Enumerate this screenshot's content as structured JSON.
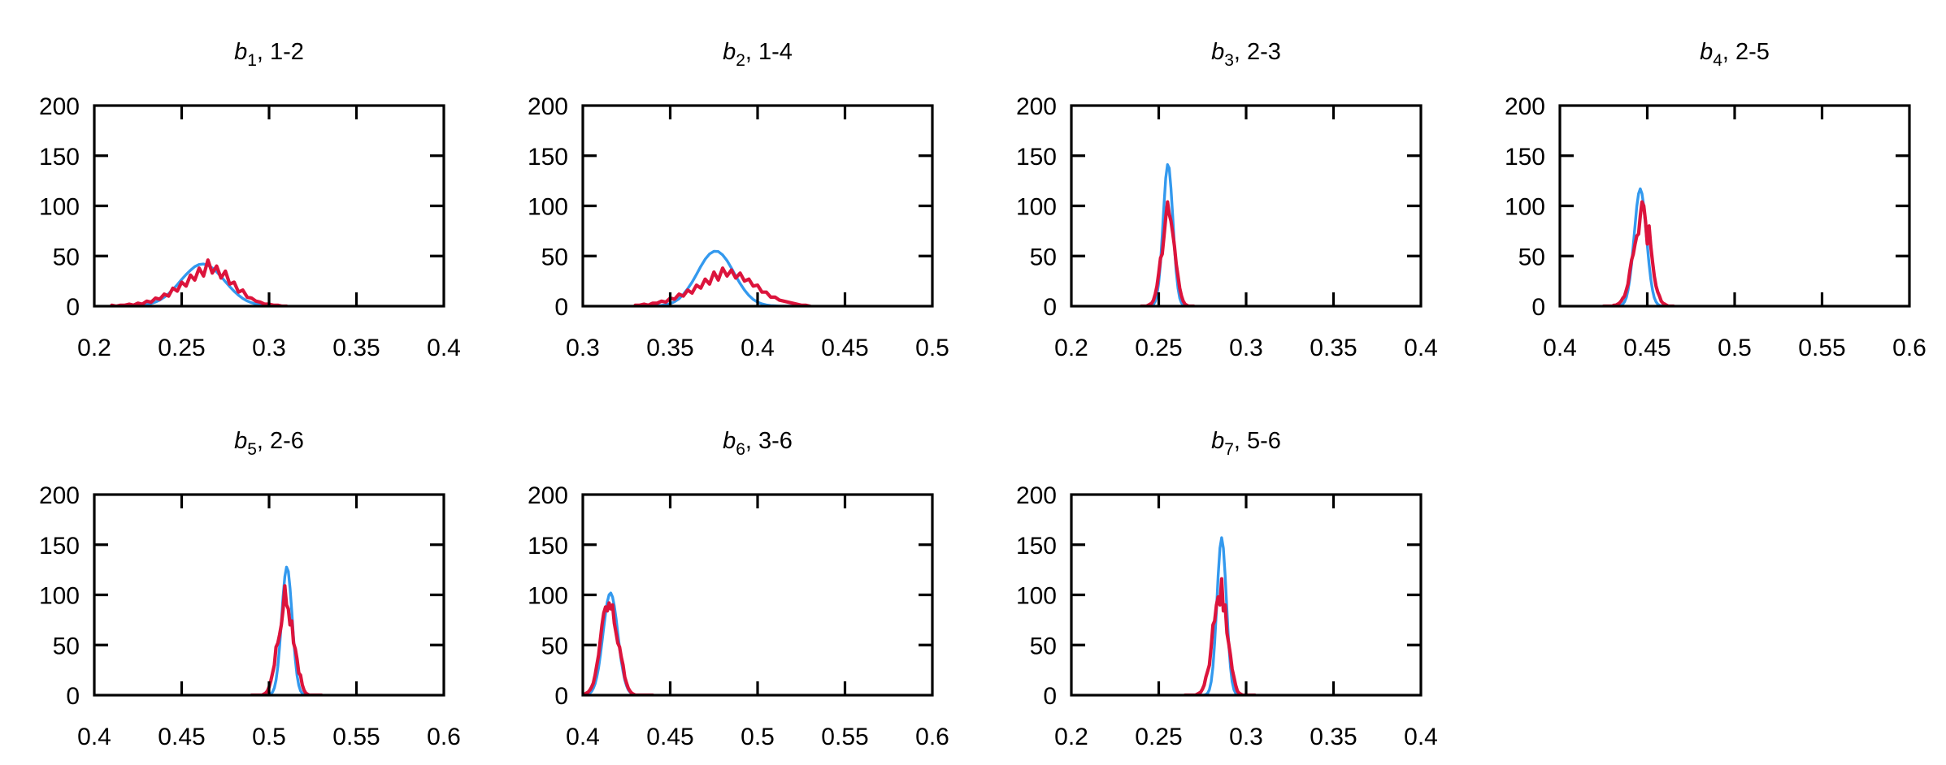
{
  "figure": {
    "colors": {
      "model": "#3399ee",
      "sample": "#dc143c",
      "axes": "#000000"
    }
  },
  "chart_data": [
    {
      "type": "line",
      "title": {
        "var": "b",
        "sub": "1",
        "rest": ", 1-2"
      },
      "xlim": [
        0.2,
        0.4
      ],
      "ylim": [
        0,
        200
      ],
      "xticks": [
        "0.2",
        "0.25",
        "0.3",
        "0.35",
        "0.4"
      ],
      "yticks": [
        "0",
        "50",
        "100",
        "150",
        "200"
      ],
      "xlabel": "",
      "ylabel": "",
      "grid": false,
      "series": [
        {
          "name": "blue",
          "color": "#3399ee",
          "x_start": 0.21,
          "x_step": 0.0025,
          "values": [
            0,
            0,
            0,
            0,
            0.2,
            0.3,
            0.5,
            0.9,
            1.6,
            2.6,
            4.1,
            6.1,
            8.9,
            12.4,
            16.6,
            21.4,
            26.6,
            31.5,
            35.8,
            39.4,
            41.5,
            42,
            40.8,
            38.1,
            34.2,
            29.6,
            24.4,
            19.5,
            14.9,
            10.9,
            7.7,
            5.2,
            3.4,
            2.1,
            1.3,
            0.7,
            0.4,
            0.2,
            0.1,
            0,
            0
          ]
        },
        {
          "name": "red",
          "color": "#dc143c",
          "x_start": 0.21,
          "x_step": 0.0025,
          "values": [
            1,
            0,
            1,
            1,
            2,
            1,
            3,
            2,
            5,
            4,
            8,
            7,
            12,
            10,
            18,
            15,
            24,
            20,
            31,
            26,
            38,
            30,
            46,
            33,
            40,
            28,
            35,
            22,
            24,
            14,
            16,
            9,
            8,
            5,
            4,
            2,
            2,
            1,
            1,
            0,
            0
          ]
        }
      ]
    },
    {
      "type": "line",
      "title": {
        "var": "b",
        "sub": "2",
        "rest": ", 1-4"
      },
      "xlim": [
        0.3,
        0.5
      ],
      "ylim": [
        0,
        200
      ],
      "xticks": [
        "0.3",
        "0.35",
        "0.4",
        "0.45",
        "0.5"
      ],
      "yticks": [
        "0",
        "50",
        "100",
        "150",
        "200"
      ],
      "xlabel": "",
      "ylabel": "",
      "grid": false,
      "series": [
        {
          "name": "blue",
          "color": "#3399ee",
          "x_start": 0.33,
          "x_step": 0.0025,
          "values": [
            0,
            0,
            0,
            0.1,
            0.2,
            0.5,
            0.7,
            1.4,
            2.5,
            4.5,
            7.4,
            11.7,
            17.3,
            23.9,
            31.7,
            39.6,
            46.8,
            52.1,
            54.7,
            54.5,
            51.1,
            45.4,
            38.0,
            30.0,
            22.6,
            16.0,
            10.7,
            6.7,
            4.0,
            2.3,
            1.2,
            0.6,
            0.3,
            0.1,
            0,
            0,
            0,
            0,
            0,
            0,
            0
          ]
        },
        {
          "name": "red",
          "color": "#dc143c",
          "x_start": 0.33,
          "x_step": 0.0025,
          "values": [
            1,
            1,
            2,
            1,
            3,
            3,
            5,
            4,
            8,
            7,
            12,
            10,
            16,
            13,
            21,
            18,
            27,
            22,
            34,
            26,
            38,
            30,
            36,
            28,
            33,
            25,
            27,
            20,
            21,
            14,
            14,
            9,
            9,
            6,
            5,
            4,
            3,
            2,
            1,
            1,
            0
          ]
        }
      ]
    },
    {
      "type": "line",
      "title": {
        "var": "b",
        "sub": "3",
        "rest": ", 2-3"
      },
      "xlim": [
        0.2,
        0.4
      ],
      "ylim": [
        0,
        200
      ],
      "xticks": [
        "0.2",
        "0.25",
        "0.3",
        "0.35",
        "0.4"
      ],
      "yticks": [
        "0",
        "50",
        "100",
        "150",
        "200"
      ],
      "xlabel": "",
      "ylabel": "",
      "grid": false,
      "series": [
        {
          "name": "blue",
          "color": "#3399ee",
          "x_start": 0.24,
          "x_step": 0.001,
          "values": [
            0,
            0,
            0,
            0,
            0,
            0.2,
            0.6,
            1.8,
            4.7,
            11.3,
            23.7,
            43.3,
            70.7,
            101.4,
            127.7,
            141.1,
            137.6,
            117.9,
            89.6,
            59.5,
            34.6,
            17.8,
            8.1,
            3.2,
            1.1,
            0.4,
            0,
            0,
            0,
            0,
            0
          ]
        },
        {
          "name": "red",
          "color": "#dc143c",
          "x_start": 0.24,
          "x_step": 0.001,
          "values": [
            0,
            0,
            0,
            0,
            1,
            2,
            3,
            6,
            12,
            20,
            33,
            48,
            52,
            70,
            88,
            104,
            92,
            85,
            73,
            60,
            42,
            30,
            18,
            10,
            5,
            2,
            1,
            0,
            0,
            0,
            0
          ]
        }
      ]
    },
    {
      "type": "line",
      "title": {
        "var": "b",
        "sub": "4",
        "rest": ", 2-5"
      },
      "xlim": [
        0.4,
        0.6
      ],
      "ylim": [
        0,
        200
      ],
      "xticks": [
        "0.4",
        "0.45",
        "0.5",
        "0.55",
        "0.6"
      ],
      "yticks": [
        "0",
        "50",
        "100",
        "150",
        "200"
      ],
      "xlabel": "",
      "ylabel": "",
      "grid": false,
      "series": [
        {
          "name": "blue",
          "color": "#3399ee",
          "x_start": 0.425,
          "x_step": 0.001,
          "values": [
            0,
            0,
            0,
            0,
            0,
            0,
            0,
            0,
            0.1,
            0.3,
            0.8,
            2.0,
            4.3,
            8.5,
            15.8,
            27.1,
            42.1,
            61.1,
            80.7,
            99.5,
            112.2,
            117,
            112.2,
            99.5,
            80.7,
            61.1,
            42.1,
            27.1,
            15.8,
            8.5,
            4.3,
            2.0,
            0.8,
            0.3,
            0.1,
            0,
            0,
            0,
            0,
            0,
            0
          ]
        },
        {
          "name": "red",
          "color": "#dc143c",
          "x_start": 0.425,
          "x_step": 0.001,
          "values": [
            0,
            0,
            0,
            0,
            0,
            0,
            1,
            1,
            2,
            3,
            5,
            8,
            10,
            16,
            22,
            35,
            46,
            52,
            62,
            70,
            72,
            90,
            104,
            100,
            85,
            62,
            80,
            60,
            44,
            30,
            20,
            14,
            10,
            5,
            3,
            2,
            1,
            0,
            0,
            0,
            0
          ]
        }
      ]
    },
    {
      "type": "line",
      "title": {
        "var": "b",
        "sub": "5",
        "rest": ", 2-6"
      },
      "xlim": [
        0.4,
        0.6
      ],
      "ylim": [
        0,
        200
      ],
      "xticks": [
        "0.4",
        "0.45",
        "0.5",
        "0.55",
        "0.6"
      ],
      "yticks": [
        "0",
        "50",
        "100",
        "150",
        "200"
      ],
      "xlabel": "",
      "ylabel": "",
      "grid": false,
      "series": [
        {
          "name": "blue",
          "color": "#3399ee",
          "x_start": 0.49,
          "x_step": 0.001,
          "values": [
            0,
            0,
            0,
            0,
            0,
            0,
            0,
            0,
            0,
            0,
            0.4,
            1.2,
            3.1,
            7.2,
            15.0,
            28.5,
            48.0,
            72.4,
            98.0,
            118.1,
            127.7,
            123.4,
            106.9,
            82.9,
            57.1,
            35.6,
            19.8,
            9.7,
            4.4,
            1.8,
            0.6,
            0.2,
            0,
            0,
            0,
            0,
            0,
            0,
            0,
            0,
            0
          ]
        },
        {
          "name": "red",
          "color": "#dc143c",
          "x_start": 0.49,
          "x_step": 0.001,
          "values": [
            0,
            0,
            0,
            0,
            0,
            0,
            0,
            1,
            2,
            4,
            8,
            14,
            22,
            30,
            48,
            52,
            60,
            70,
            85,
            109,
            90,
            86,
            70,
            74,
            52,
            46,
            36,
            22,
            20,
            10,
            5,
            2,
            1,
            0,
            0,
            0,
            0,
            0,
            0,
            0,
            0
          ]
        }
      ]
    },
    {
      "type": "line",
      "title": {
        "var": "b",
        "sub": "6",
        "rest": ", 3-6"
      },
      "xlim": [
        0.4,
        0.6
      ],
      "ylim": [
        0,
        200
      ],
      "xticks": [
        "0.4",
        "0.45",
        "0.5",
        "0.55",
        "0.6"
      ],
      "yticks": [
        "0",
        "50",
        "100",
        "150",
        "200"
      ],
      "xlabel": "",
      "ylabel": "",
      "grid": false,
      "series": [
        {
          "name": "blue",
          "color": "#3399ee",
          "x_start": 0.4,
          "x_step": 0.001,
          "values": [
            0.1,
            0.2,
            0.5,
            1.0,
            2.0,
            3.7,
            6.8,
            11.3,
            18.1,
            27.4,
            39.4,
            53.2,
            67.9,
            81.6,
            93.0,
            100.2,
            101.9,
            97.8,
            89.0,
            76.4,
            61.9,
            47.2,
            34.0,
            23.6,
            15.2,
            9.3,
            5.3,
            2.9,
            1.5,
            0.7,
            0.3,
            0,
            0,
            0,
            0,
            0,
            0,
            0,
            0,
            0,
            0
          ]
        },
        {
          "name": "red",
          "color": "#dc143c",
          "x_start": 0.4,
          "x_step": 0.001,
          "values": [
            1,
            1,
            2,
            3,
            5,
            8,
            12,
            20,
            30,
            40,
            55,
            70,
            82,
            88,
            84,
            92,
            86,
            90,
            72,
            62,
            52,
            48,
            38,
            30,
            18,
            12,
            7,
            4,
            2,
            1,
            0,
            0,
            0,
            0,
            0,
            0,
            0,
            0,
            0,
            0,
            0
          ]
        }
      ]
    },
    {
      "type": "line",
      "title": {
        "var": "b",
        "sub": "7",
        "rest": ", 5-6"
      },
      "xlim": [
        0.2,
        0.4
      ],
      "ylim": [
        0,
        200
      ],
      "xticks": [
        "0.2",
        "0.25",
        "0.3",
        "0.35",
        "0.4"
      ],
      "yticks": [
        "0",
        "50",
        "100",
        "150",
        "200"
      ],
      "xlabel": "",
      "ylabel": "",
      "grid": false,
      "series": [
        {
          "name": "blue",
          "color": "#3399ee",
          "x_start": 0.265,
          "x_step": 0.001,
          "values": [
            0,
            0,
            0,
            0,
            0,
            0,
            0,
            0,
            0,
            0,
            0,
            0.2,
            0.6,
            2.0,
            5.5,
            13.4,
            28.4,
            52.5,
            84.7,
            119.3,
            146.6,
            157,
            146.6,
            119.3,
            84.7,
            52.5,
            28.4,
            13.4,
            5.5,
            2.0,
            0.6,
            0.2,
            0,
            0,
            0,
            0,
            0,
            0,
            0,
            0,
            0
          ]
        },
        {
          "name": "red",
          "color": "#dc143c",
          "x_start": 0.265,
          "x_step": 0.001,
          "values": [
            0,
            0,
            0,
            0,
            0,
            0,
            0,
            1,
            2,
            3,
            6,
            10,
            18,
            24,
            30,
            48,
            70,
            74,
            90,
            98,
            90,
            116,
            84,
            90,
            62,
            52,
            40,
            26,
            18,
            10,
            4,
            2,
            1,
            0,
            0,
            0,
            0,
            0,
            0,
            0,
            0
          ]
        }
      ]
    }
  ]
}
